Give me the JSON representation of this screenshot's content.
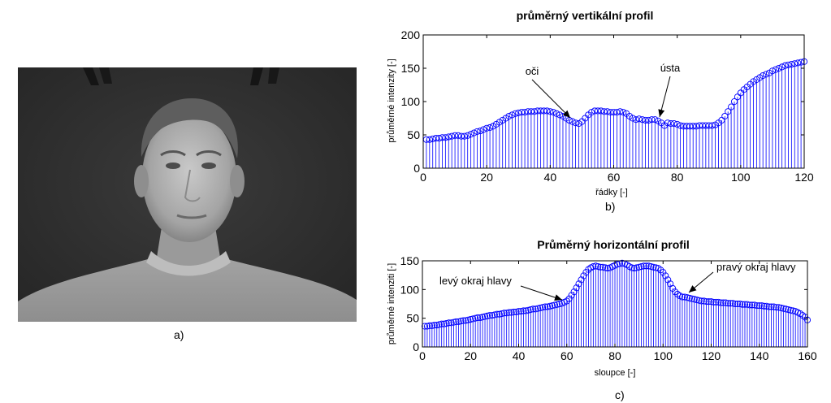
{
  "panel_labels": {
    "a": "a)",
    "b": "b)",
    "c": "c)"
  },
  "colors": {
    "stem": "#0000ff",
    "axis": "#000000"
  },
  "photo": {
    "subject": "grayscale portrait of a man, head-and-shoulders, dark background"
  },
  "chart_data": [
    {
      "type": "stem",
      "title": "průměrný vertikální profil",
      "xlabel": "řádky [-]",
      "ylabel": "průměrné intenzity [-]",
      "xlim": [
        0,
        120
      ],
      "ylim": [
        0,
        200
      ],
      "xticks": [
        0,
        20,
        40,
        60,
        80,
        100,
        120
      ],
      "yticks": [
        0,
        50,
        100,
        150,
        200
      ],
      "x": [
        1,
        2,
        3,
        4,
        5,
        6,
        7,
        8,
        9,
        10,
        11,
        12,
        13,
        14,
        15,
        16,
        17,
        18,
        19,
        20,
        21,
        22,
        23,
        24,
        25,
        26,
        27,
        28,
        29,
        30,
        31,
        32,
        33,
        34,
        35,
        36,
        37,
        38,
        39,
        40,
        41,
        42,
        43,
        44,
        45,
        46,
        47,
        48,
        49,
        50,
        51,
        52,
        53,
        54,
        55,
        56,
        57,
        58,
        59,
        60,
        61,
        62,
        63,
        64,
        65,
        66,
        67,
        68,
        69,
        70,
        71,
        72,
        73,
        74,
        75,
        76,
        77,
        78,
        79,
        80,
        81,
        82,
        83,
        84,
        85,
        86,
        87,
        88,
        89,
        90,
        91,
        92,
        93,
        94,
        95,
        96,
        97,
        98,
        99,
        100,
        101,
        102,
        103,
        104,
        105,
        106,
        107,
        108,
        109,
        110,
        111,
        112,
        113,
        114,
        115,
        116,
        117,
        118,
        119,
        120
      ],
      "y": [
        43,
        43,
        44,
        45,
        45,
        46,
        46,
        47,
        48,
        49,
        49,
        48,
        48,
        49,
        51,
        53,
        55,
        56,
        58,
        60,
        61,
        63,
        66,
        69,
        72,
        75,
        78,
        80,
        82,
        83,
        84,
        84,
        85,
        85,
        85,
        86,
        86,
        86,
        86,
        85,
        84,
        82,
        80,
        78,
        75,
        72,
        70,
        68,
        67,
        70,
        75,
        80,
        84,
        86,
        86,
        86,
        85,
        85,
        84,
        84,
        84,
        85,
        84,
        82,
        78,
        75,
        73,
        74,
        73,
        72,
        72,
        73,
        73,
        71,
        68,
        64,
        68,
        67,
        67,
        66,
        64,
        63,
        63,
        63,
        63,
        63,
        64,
        64,
        64,
        64,
        64,
        65,
        68,
        72,
        78,
        85,
        92,
        100,
        107,
        113,
        118,
        122,
        126,
        130,
        133,
        136,
        139,
        141,
        143,
        146,
        148,
        150,
        152,
        154,
        155,
        156,
        157,
        158,
        159,
        160
      ],
      "annotations": [
        {
          "text": "oči",
          "x": 49,
          "y": 64
        },
        {
          "text": "ústa",
          "x": 76,
          "y": 68
        }
      ]
    },
    {
      "type": "stem",
      "title": "Průměrný horizontální profil",
      "xlabel": "sloupce [-]",
      "ylabel": "průměrné intenziti [-]",
      "xlim": [
        0,
        160
      ],
      "ylim": [
        0,
        150
      ],
      "xticks": [
        0,
        20,
        40,
        60,
        80,
        100,
        120,
        140,
        160
      ],
      "yticks": [
        0,
        50,
        100,
        150
      ],
      "x": [
        1,
        2,
        3,
        4,
        5,
        6,
        7,
        8,
        9,
        10,
        11,
        12,
        13,
        14,
        15,
        16,
        17,
        18,
        19,
        20,
        21,
        22,
        23,
        24,
        25,
        26,
        27,
        28,
        29,
        30,
        31,
        32,
        33,
        34,
        35,
        36,
        37,
        38,
        39,
        40,
        41,
        42,
        43,
        44,
        45,
        46,
        47,
        48,
        49,
        50,
        51,
        52,
        53,
        54,
        55,
        56,
        57,
        58,
        59,
        60,
        61,
        62,
        63,
        64,
        65,
        66,
        67,
        68,
        69,
        70,
        71,
        72,
        73,
        74,
        75,
        76,
        77,
        78,
        79,
        80,
        81,
        82,
        83,
        84,
        85,
        86,
        87,
        88,
        89,
        90,
        91,
        92,
        93,
        94,
        95,
        96,
        97,
        98,
        99,
        100,
        101,
        102,
        103,
        104,
        105,
        106,
        107,
        108,
        109,
        110,
        111,
        112,
        113,
        114,
        115,
        116,
        117,
        118,
        119,
        120,
        121,
        122,
        123,
        124,
        125,
        126,
        127,
        128,
        129,
        130,
        131,
        132,
        133,
        134,
        135,
        136,
        137,
        138,
        139,
        140,
        141,
        142,
        143,
        144,
        145,
        146,
        147,
        148,
        149,
        150,
        151,
        152,
        153,
        154,
        155,
        156,
        157,
        158,
        159,
        160
      ],
      "y": [
        36,
        36,
        37,
        37,
        38,
        38,
        39,
        40,
        40,
        41,
        42,
        42,
        43,
        44,
        44,
        45,
        46,
        46,
        47,
        48,
        49,
        50,
        51,
        51,
        52,
        53,
        54,
        55,
        55,
        56,
        57,
        57,
        58,
        59,
        59,
        60,
        60,
        61,
        61,
        62,
        62,
        63,
        63,
        64,
        65,
        66,
        66,
        67,
        68,
        69,
        70,
        70,
        71,
        72,
        73,
        74,
        75,
        76,
        78,
        80,
        84,
        90,
        96,
        103,
        110,
        117,
        124,
        130,
        135,
        138,
        140,
        141,
        140,
        139,
        139,
        138,
        137,
        138,
        140,
        142,
        144,
        145,
        146,
        145,
        143,
        140,
        138,
        137,
        138,
        139,
        140,
        141,
        141,
        141,
        140,
        139,
        138,
        137,
        134,
        130,
        124,
        117,
        110,
        102,
        96,
        92,
        89,
        87,
        87,
        86,
        85,
        84,
        83,
        82,
        81,
        80,
        80,
        79,
        79,
        79,
        78,
        78,
        78,
        77,
        77,
        77,
        76,
        76,
        76,
        75,
        75,
        75,
        74,
        74,
        74,
        73,
        73,
        73,
        72,
        72,
        72,
        71,
        71,
        70,
        70,
        70,
        69,
        69,
        68,
        67,
        66,
        65,
        64,
        63,
        62,
        60,
        58,
        55,
        52,
        47
      ],
      "annotations": [
        {
          "text": "levý okraj hlavy",
          "x": 61,
          "y": 80
        },
        {
          "text": "pravý okraj hlavy",
          "x": 110,
          "y": 88
        }
      ]
    }
  ]
}
